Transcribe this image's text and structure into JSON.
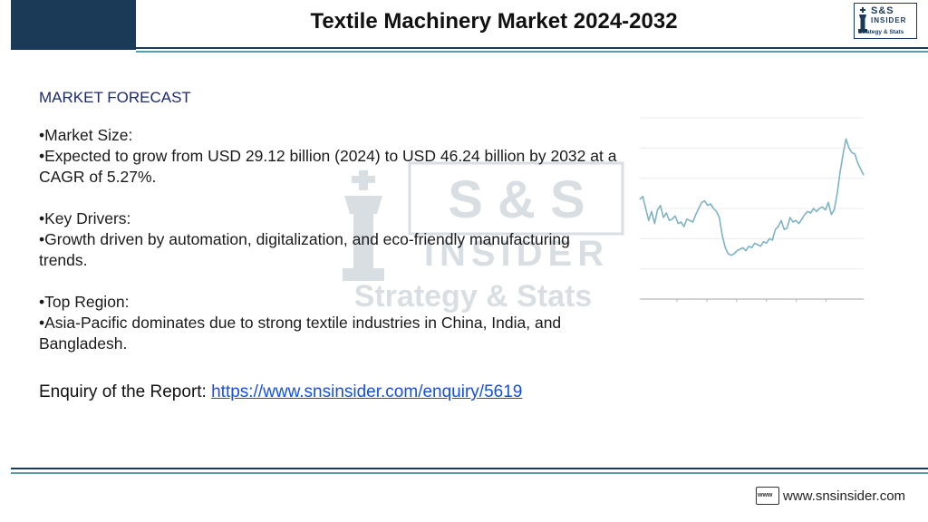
{
  "header": {
    "title": "Textile Machinery Market 2024-2032",
    "logo": {
      "line1": "S&S",
      "line2": "INSIDER",
      "tagline": "Strategy & Stats"
    }
  },
  "watermark": {
    "line1": "S & S",
    "line2": "INSIDER",
    "line3": "Strategy & Stats"
  },
  "content": {
    "heading": "MARKET FORECAST",
    "items": [
      "•Market Size:",
      "•Expected to grow from USD 29.12 billion (2024) to USD 46.24 billion by 2032 at a CAGR of 5.27%.",
      "•Key Drivers:",
      "•Growth driven by automation, digitalization, and eco-friendly manufacturing trends.",
      "•Top Region:",
      "•Asia-Pacific dominates due to strong textile industries in China, India, and Bangladesh."
    ],
    "enquiry_label": "Enquiry of the Report:",
    "enquiry_link": "https://www.snsinsider.com/enquiry/5619"
  },
  "footer": {
    "icon_text": "www",
    "site": "www.snsinsider.com"
  },
  "colors": {
    "navy": "#1b3a57",
    "teal": "#5a9ea8",
    "heading": "#1b2a6b",
    "link": "#1a4fd6",
    "chart_line": "#7fb3c4"
  },
  "chart_data": {
    "type": "line",
    "title": "",
    "xlabel": "",
    "ylabel": "",
    "ylim": [
      0,
      6
    ],
    "grid": true,
    "series": [
      {
        "values": [
          3.3,
          3.4,
          3.0,
          2.6,
          2.9,
          2.5,
          2.95,
          3.1,
          2.7,
          2.85,
          2.6,
          2.65,
          2.75,
          2.5,
          2.55,
          2.4,
          2.65,
          2.6,
          2.55,
          2.8,
          3.0,
          3.2,
          3.25,
          3.1,
          3.15,
          3.0,
          2.9,
          2.7,
          2.1,
          1.7,
          1.5,
          1.45,
          1.5,
          1.6,
          1.65,
          1.7,
          1.6,
          1.75,
          1.7,
          1.85,
          1.8,
          1.75,
          1.9,
          1.85,
          2.0,
          1.95,
          2.3,
          2.4,
          2.6,
          2.3,
          2.35,
          2.7,
          2.55,
          2.6,
          2.5,
          2.65,
          2.8,
          2.9,
          2.85,
          3.0,
          2.9,
          3.0,
          3.05,
          2.95,
          3.2,
          2.8,
          2.95,
          3.5,
          4.2,
          4.8,
          5.3,
          5.0,
          4.85,
          4.8,
          4.5,
          4.3,
          4.1
        ]
      }
    ]
  }
}
